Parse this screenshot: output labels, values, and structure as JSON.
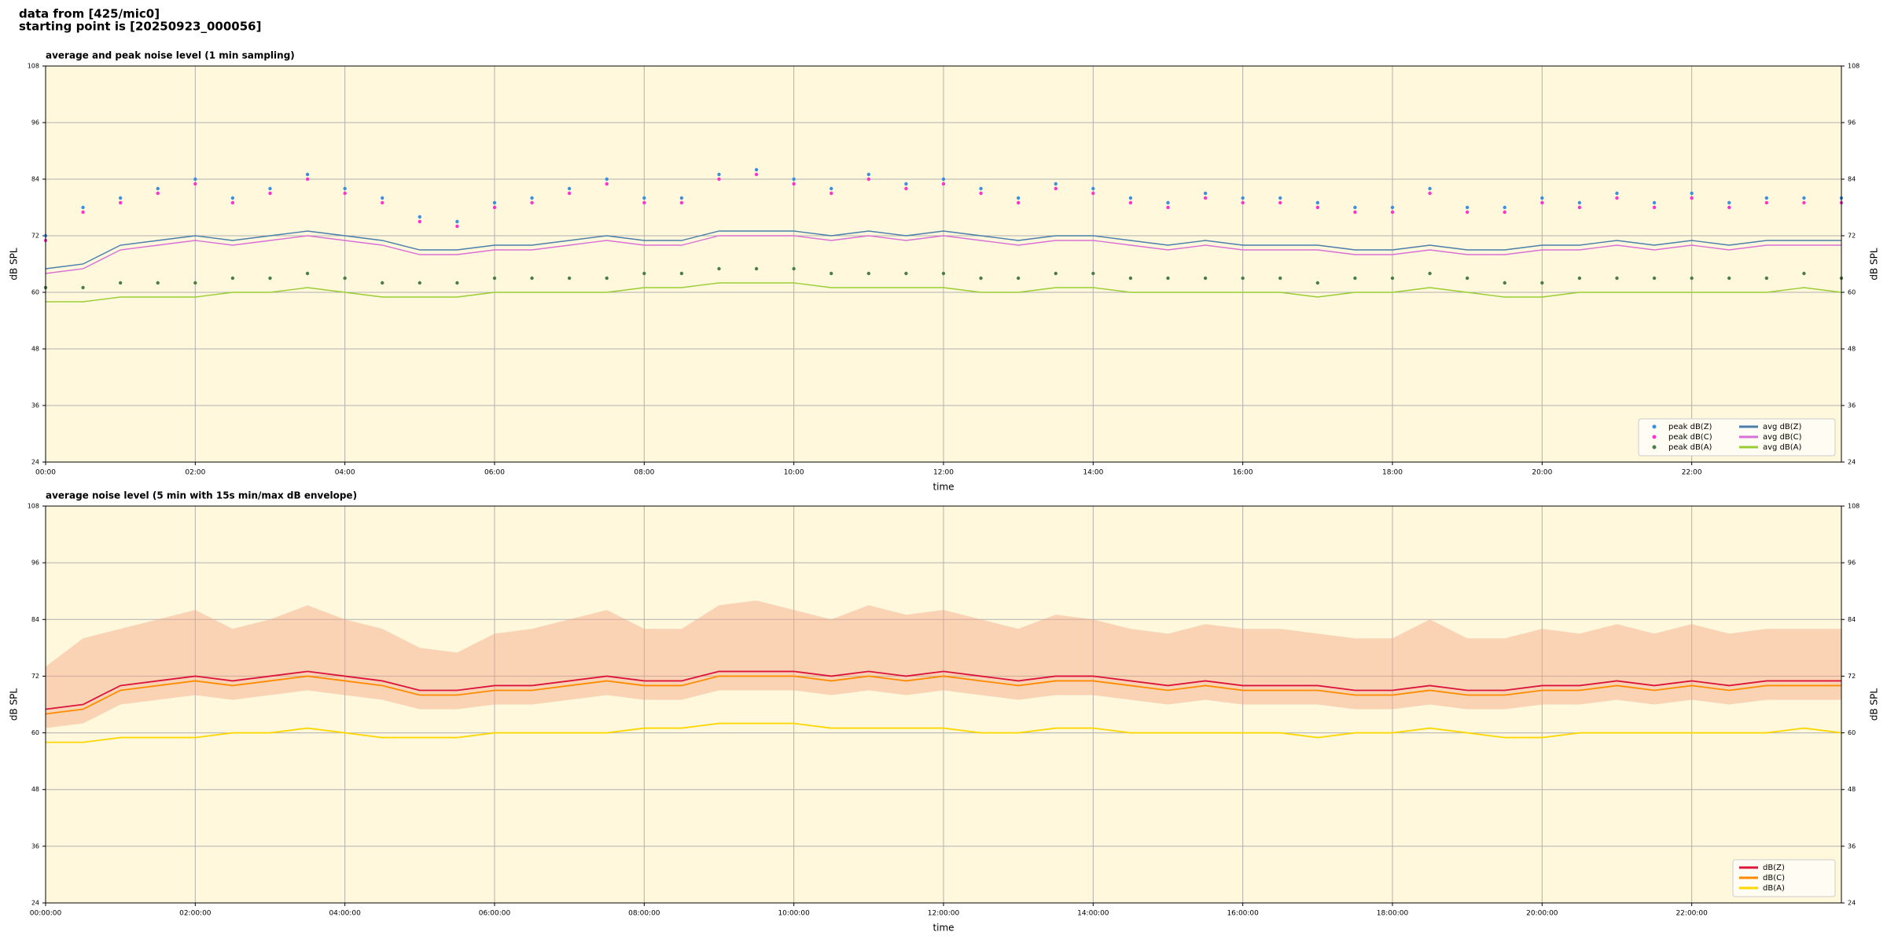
{
  "header": [
    "data from [425/mic0]",
    "starting point is [20250923_000056]"
  ],
  "chart_data": [
    {
      "type": "line",
      "title": "average and peak noise level (1 min sampling)",
      "xlabel": "time",
      "ylabel": "dB SPL",
      "background": "#fff8dc",
      "grid": true,
      "right_axis": true,
      "legend": "lower right",
      "legend_columns": 2,
      "xlim": [
        0,
        24
      ],
      "ylim": [
        24,
        108
      ],
      "yticks": [
        24,
        36,
        48,
        60,
        72,
        84,
        96,
        108
      ],
      "xticks": [
        {
          "value": 0,
          "label": "00:00"
        },
        {
          "value": 2,
          "label": "02:00"
        },
        {
          "value": 4,
          "label": "04:00"
        },
        {
          "value": 6,
          "label": "06:00"
        },
        {
          "value": 8,
          "label": "08:00"
        },
        {
          "value": 10,
          "label": "10:00"
        },
        {
          "value": 12,
          "label": "12:00"
        },
        {
          "value": 14,
          "label": "14:00"
        },
        {
          "value": 16,
          "label": "16:00"
        },
        {
          "value": 18,
          "label": "18:00"
        },
        {
          "value": 20,
          "label": "20:00"
        },
        {
          "value": 22,
          "label": "22:00"
        }
      ],
      "x": [
        0,
        0.5,
        1,
        1.5,
        2,
        2.5,
        3,
        3.5,
        4,
        4.5,
        5,
        5.5,
        6,
        6.5,
        7,
        7.5,
        8,
        8.5,
        9,
        9.5,
        10,
        10.5,
        11,
        11.5,
        12,
        12.5,
        13,
        13.5,
        14,
        14.5,
        15,
        15.5,
        16,
        16.5,
        17,
        17.5,
        18,
        18.5,
        19,
        19.5,
        20,
        20.5,
        21,
        21.5,
        22,
        22.5,
        23,
        23.5,
        24
      ],
      "series": [
        {
          "name": "peak dB(Z)",
          "style": "dots",
          "color": "#3b8fe0",
          "values": [
            72,
            78,
            80,
            82,
            84,
            80,
            82,
            85,
            82,
            80,
            76,
            75,
            79,
            80,
            82,
            84,
            80,
            80,
            85,
            86,
            84,
            82,
            85,
            83,
            84,
            82,
            80,
            83,
            82,
            80,
            79,
            81,
            80,
            80,
            79,
            78,
            78,
            82,
            78,
            78,
            80,
            79,
            81,
            79,
            81,
            79,
            80,
            80,
            80
          ]
        },
        {
          "name": "peak dB(C)",
          "style": "dots",
          "color": "#ff33cc",
          "values": [
            71,
            77,
            79,
            81,
            83,
            79,
            81,
            84,
            81,
            79,
            75,
            74,
            78,
            79,
            81,
            83,
            79,
            79,
            84,
            85,
            83,
            81,
            84,
            82,
            83,
            81,
            79,
            82,
            81,
            79,
            78,
            80,
            79,
            79,
            78,
            77,
            77,
            81,
            77,
            77,
            79,
            78,
            80,
            78,
            80,
            78,
            79,
            79,
            79
          ]
        },
        {
          "name": "peak dB(A)",
          "style": "dots",
          "color": "#4a7d4a",
          "values": [
            61,
            61,
            62,
            62,
            62,
            63,
            63,
            64,
            63,
            62,
            62,
            62,
            63,
            63,
            63,
            63,
            64,
            64,
            65,
            65,
            65,
            64,
            64,
            64,
            64,
            63,
            63,
            64,
            64,
            63,
            63,
            63,
            63,
            63,
            62,
            63,
            63,
            64,
            63,
            62,
            62,
            63,
            63,
            63,
            63,
            63,
            63,
            64,
            63
          ]
        },
        {
          "name": "avg dB(Z)",
          "style": "line",
          "color": "#4a7eab",
          "values": [
            65,
            66,
            70,
            71,
            72,
            71,
            72,
            73,
            72,
            71,
            69,
            69,
            70,
            70,
            71,
            72,
            71,
            71,
            73,
            73,
            73,
            72,
            73,
            72,
            73,
            72,
            71,
            72,
            72,
            71,
            70,
            71,
            70,
            70,
            70,
            69,
            69,
            70,
            69,
            69,
            70,
            70,
            71,
            70,
            71,
            70,
            71,
            71,
            71
          ]
        },
        {
          "name": "avg dB(C)",
          "style": "line",
          "color": "#da70d6",
          "values": [
            64,
            65,
            69,
            70,
            71,
            70,
            71,
            72,
            71,
            70,
            68,
            68,
            69,
            69,
            70,
            71,
            70,
            70,
            72,
            72,
            72,
            71,
            72,
            71,
            72,
            71,
            70,
            71,
            71,
            70,
            69,
            70,
            69,
            69,
            69,
            68,
            68,
            69,
            68,
            68,
            69,
            69,
            70,
            69,
            70,
            69,
            70,
            70,
            70
          ]
        },
        {
          "name": "avg dB(A)",
          "style": "line",
          "color": "#9acd32",
          "values": [
            58,
            58,
            59,
            59,
            59,
            60,
            60,
            61,
            60,
            59,
            59,
            59,
            60,
            60,
            60,
            60,
            61,
            61,
            62,
            62,
            62,
            61,
            61,
            61,
            61,
            60,
            60,
            61,
            61,
            60,
            60,
            60,
            60,
            60,
            59,
            60,
            60,
            61,
            60,
            59,
            59,
            60,
            60,
            60,
            60,
            60,
            60,
            61,
            60
          ]
        }
      ]
    },
    {
      "type": "line",
      "title": "average noise level (5 min with 15s min/max dB envelope)",
      "xlabel": "time",
      "ylabel": "dB SPL",
      "background": "#fff8dc",
      "grid": true,
      "right_axis": true,
      "legend": "lower right",
      "legend_columns": 1,
      "xlim": [
        0,
        24
      ],
      "ylim": [
        24,
        108
      ],
      "yticks": [
        24,
        36,
        48,
        60,
        72,
        84,
        96,
        108
      ],
      "xticks": [
        {
          "value": 0,
          "label": "00:00:00"
        },
        {
          "value": 2,
          "label": "02:00:00"
        },
        {
          "value": 4,
          "label": "04:00:00"
        },
        {
          "value": 6,
          "label": "06:00:00"
        },
        {
          "value": 8,
          "label": "08:00:00"
        },
        {
          "value": 10,
          "label": "10:00:00"
        },
        {
          "value": 12,
          "label": "12:00:00"
        },
        {
          "value": 14,
          "label": "14:00:00"
        },
        {
          "value": 16,
          "label": "16:00:00"
        },
        {
          "value": 18,
          "label": "18:00:00"
        },
        {
          "value": 20,
          "label": "20:00:00"
        },
        {
          "value": 22,
          "label": "22:00:00"
        }
      ],
      "x": [
        0,
        0.5,
        1,
        1.5,
        2,
        2.5,
        3,
        3.5,
        4,
        4.5,
        5,
        5.5,
        6,
        6.5,
        7,
        7.5,
        8,
        8.5,
        9,
        9.5,
        10,
        10.5,
        11,
        11.5,
        12,
        12.5,
        13,
        13.5,
        14,
        14.5,
        15,
        15.5,
        16,
        16.5,
        17,
        17.5,
        18,
        18.5,
        19,
        19.5,
        20,
        20.5,
        21,
        21.5,
        22,
        22.5,
        23,
        23.5,
        24
      ],
      "envelope": {
        "color": "#f4a582",
        "low": [
          61,
          62,
          66,
          67,
          68,
          67,
          68,
          69,
          68,
          67,
          65,
          65,
          66,
          66,
          67,
          68,
          67,
          67,
          69,
          69,
          69,
          68,
          69,
          68,
          69,
          68,
          67,
          68,
          68,
          67,
          66,
          67,
          66,
          66,
          66,
          65,
          65,
          66,
          65,
          65,
          66,
          66,
          67,
          66,
          67,
          66,
          67,
          67,
          67
        ],
        "high": [
          74,
          80,
          82,
          84,
          86,
          82,
          84,
          87,
          84,
          82,
          78,
          77,
          81,
          82,
          84,
          86,
          82,
          82,
          87,
          88,
          86,
          84,
          87,
          85,
          86,
          84,
          82,
          85,
          84,
          82,
          81,
          83,
          82,
          82,
          81,
          80,
          80,
          84,
          80,
          80,
          82,
          81,
          83,
          81,
          83,
          81,
          82,
          82,
          82
        ]
      },
      "series": [
        {
          "name": "dB(Z)",
          "style": "line",
          "color": "#dc143c",
          "values": [
            65,
            66,
            70,
            71,
            72,
            71,
            72,
            73,
            72,
            71,
            69,
            69,
            70,
            70,
            71,
            72,
            71,
            71,
            73,
            73,
            73,
            72,
            73,
            72,
            73,
            72,
            71,
            72,
            72,
            71,
            70,
            71,
            70,
            70,
            70,
            69,
            69,
            70,
            69,
            69,
            70,
            70,
            71,
            70,
            71,
            70,
            71,
            71,
            71
          ]
        },
        {
          "name": "dB(C)",
          "style": "line",
          "color": "#ff8c00",
          "values": [
            64,
            65,
            69,
            70,
            71,
            70,
            71,
            72,
            71,
            70,
            68,
            68,
            69,
            69,
            70,
            71,
            70,
            70,
            72,
            72,
            72,
            71,
            72,
            71,
            72,
            71,
            70,
            71,
            71,
            70,
            69,
            70,
            69,
            69,
            69,
            68,
            68,
            69,
            68,
            68,
            69,
            69,
            70,
            69,
            70,
            69,
            70,
            70,
            70
          ]
        },
        {
          "name": "dB(A)",
          "style": "line",
          "color": "#ffd700",
          "values": [
            58,
            58,
            59,
            59,
            59,
            60,
            60,
            61,
            60,
            59,
            59,
            59,
            60,
            60,
            60,
            60,
            61,
            61,
            62,
            62,
            62,
            61,
            61,
            61,
            61,
            60,
            60,
            61,
            61,
            60,
            60,
            60,
            60,
            60,
            59,
            60,
            60,
            61,
            60,
            59,
            59,
            60,
            60,
            60,
            60,
            60,
            60,
            61,
            60
          ]
        }
      ]
    }
  ]
}
